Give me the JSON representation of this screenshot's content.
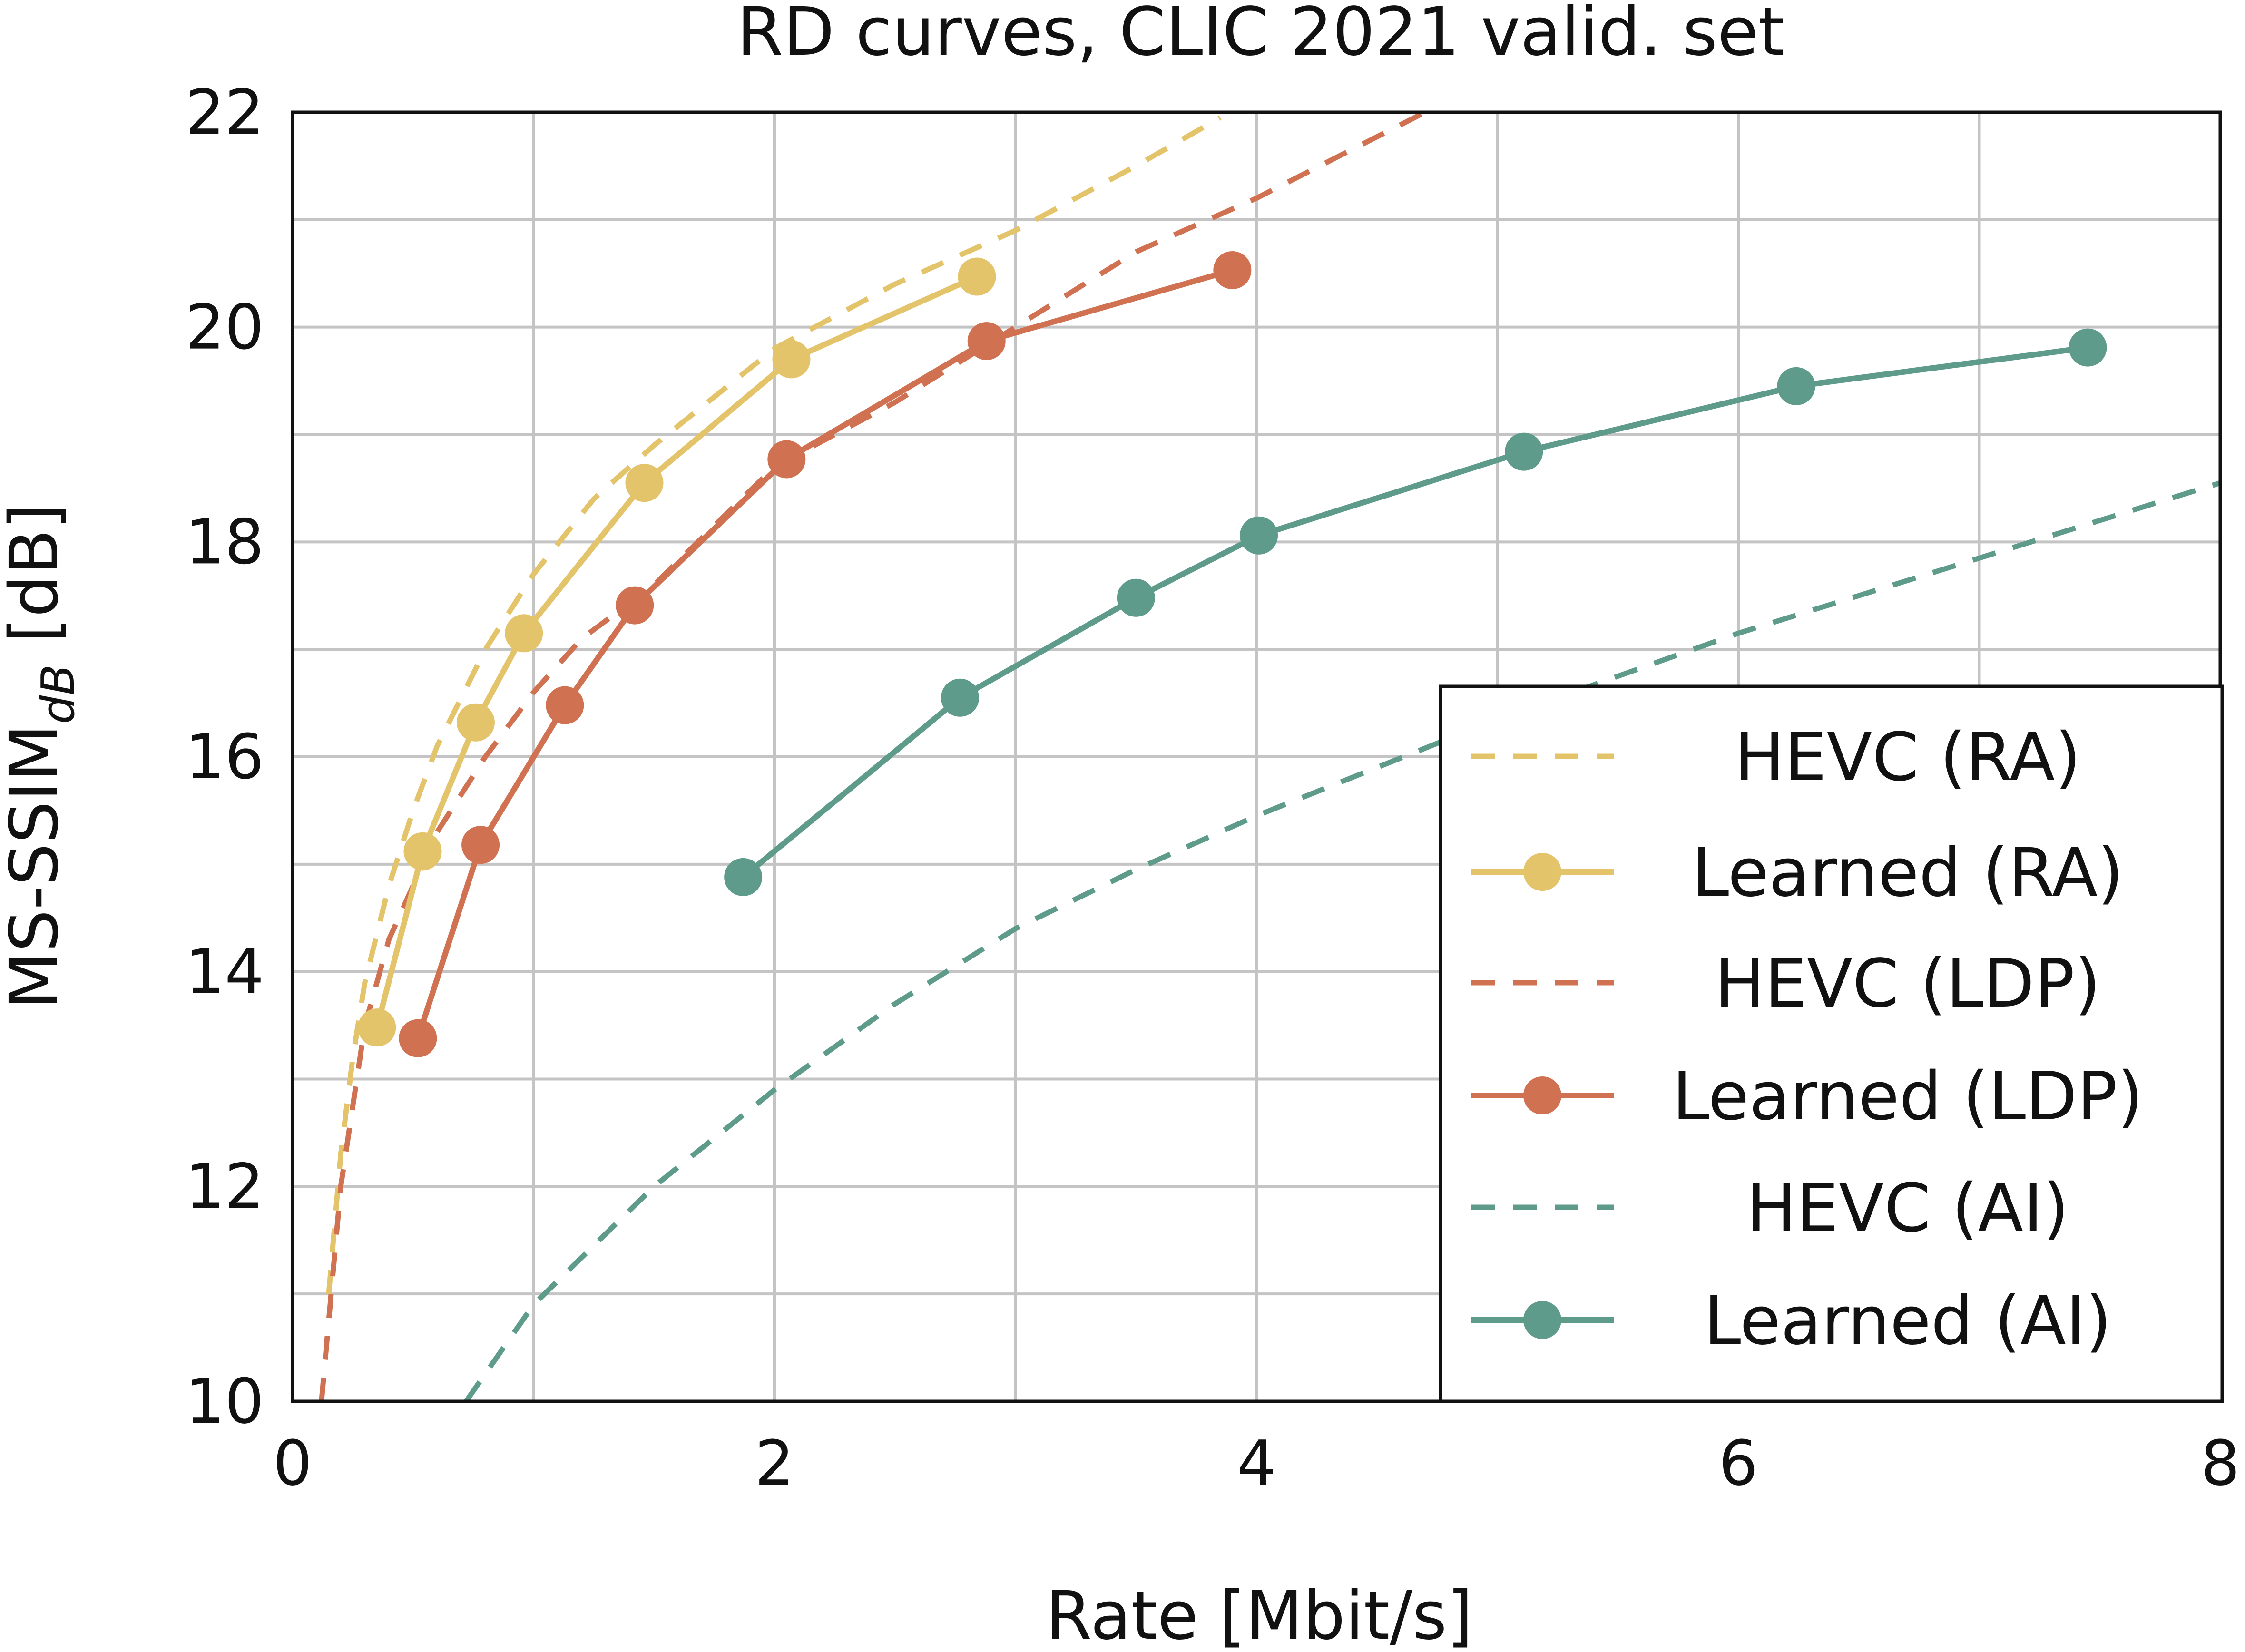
{
  "chart_data": {
    "type": "line",
    "title": "RD curves, CLIC 2021 valid. set",
    "xlabel": "Rate [Mbit/s]",
    "ylabel_main": "MS-SSIM",
    "ylabel_sub": "dB",
    "ylabel_unit": " [dB]",
    "xlim": [
      0,
      8
    ],
    "ylim": [
      10,
      22
    ],
    "xticks": [
      0,
      2,
      4,
      6,
      8
    ],
    "yticks": [
      10,
      12,
      14,
      16,
      18,
      20,
      22
    ],
    "x_gridlines": [
      0,
      1,
      2,
      3,
      4,
      5,
      6,
      7,
      8
    ],
    "y_gridlines": [
      10,
      11,
      12,
      13,
      14,
      15,
      16,
      17,
      18,
      19,
      20,
      21,
      22
    ],
    "grid": true,
    "legend_position": "bottom-right",
    "series": [
      {
        "name": "HEVC (RA)",
        "style": "dashed",
        "color": "#e3c46a",
        "x": [
          0.15,
          0.2,
          0.25,
          0.3,
          0.4,
          0.5,
          0.6,
          0.8,
          1.0,
          1.25,
          1.5,
          2.0,
          2.5,
          3.0,
          3.5,
          3.85
        ],
        "y": [
          11.0,
          12.3,
          13.2,
          13.9,
          14.8,
          15.5,
          16.1,
          17.0,
          17.7,
          18.4,
          18.9,
          19.8,
          20.4,
          20.9,
          21.5,
          21.95
        ]
      },
      {
        "name": "Learned (RA)",
        "style": "solid-marker",
        "color": "#e3c46a",
        "x": [
          0.35,
          0.54,
          0.76,
          0.96,
          1.46,
          2.07,
          2.84
        ],
        "y": [
          13.48,
          15.12,
          16.32,
          17.15,
          18.55,
          19.7,
          20.47
        ]
      },
      {
        "name": "HEVC (LDP)",
        "style": "dashed",
        "color": "#d07252",
        "x": [
          0.12,
          0.2,
          0.3,
          0.4,
          0.6,
          0.8,
          1.0,
          1.2,
          1.5,
          2.0,
          2.5,
          3.0,
          3.5,
          4.0,
          4.7
        ],
        "y": [
          10.0,
          12.0,
          13.5,
          14.3,
          15.3,
          16.0,
          16.6,
          17.1,
          17.6,
          18.7,
          19.3,
          20.0,
          20.7,
          21.2,
          22.0
        ]
      },
      {
        "name": "Learned (LDP)",
        "style": "solid-marker",
        "color": "#d07252",
        "x": [
          0.52,
          0.78,
          1.13,
          1.42,
          2.05,
          2.88,
          3.9
        ],
        "y": [
          13.38,
          15.18,
          16.48,
          17.41,
          18.77,
          19.87,
          20.53
        ]
      },
      {
        "name": "HEVC (AI)",
        "style": "dashed",
        "color": "#5e9b8a",
        "x": [
          0.72,
          1.0,
          1.5,
          2.0,
          2.5,
          3.0,
          3.5,
          4.0,
          4.5,
          5.0,
          5.5,
          6.0,
          6.5,
          7.0,
          7.5,
          8.0
        ],
        "y": [
          10.0,
          10.9,
          12.0,
          12.9,
          13.7,
          14.4,
          14.95,
          15.45,
          15.9,
          16.35,
          16.75,
          17.15,
          17.5,
          17.85,
          18.2,
          18.55
        ]
      },
      {
        "name": "Learned (AI)",
        "style": "solid-marker",
        "color": "#5e9b8a",
        "x": [
          1.87,
          2.77,
          3.5,
          4.01,
          5.11,
          6.24,
          7.45
        ],
        "y": [
          14.88,
          16.55,
          17.48,
          18.06,
          18.84,
          19.45,
          19.81
        ]
      }
    ]
  }
}
